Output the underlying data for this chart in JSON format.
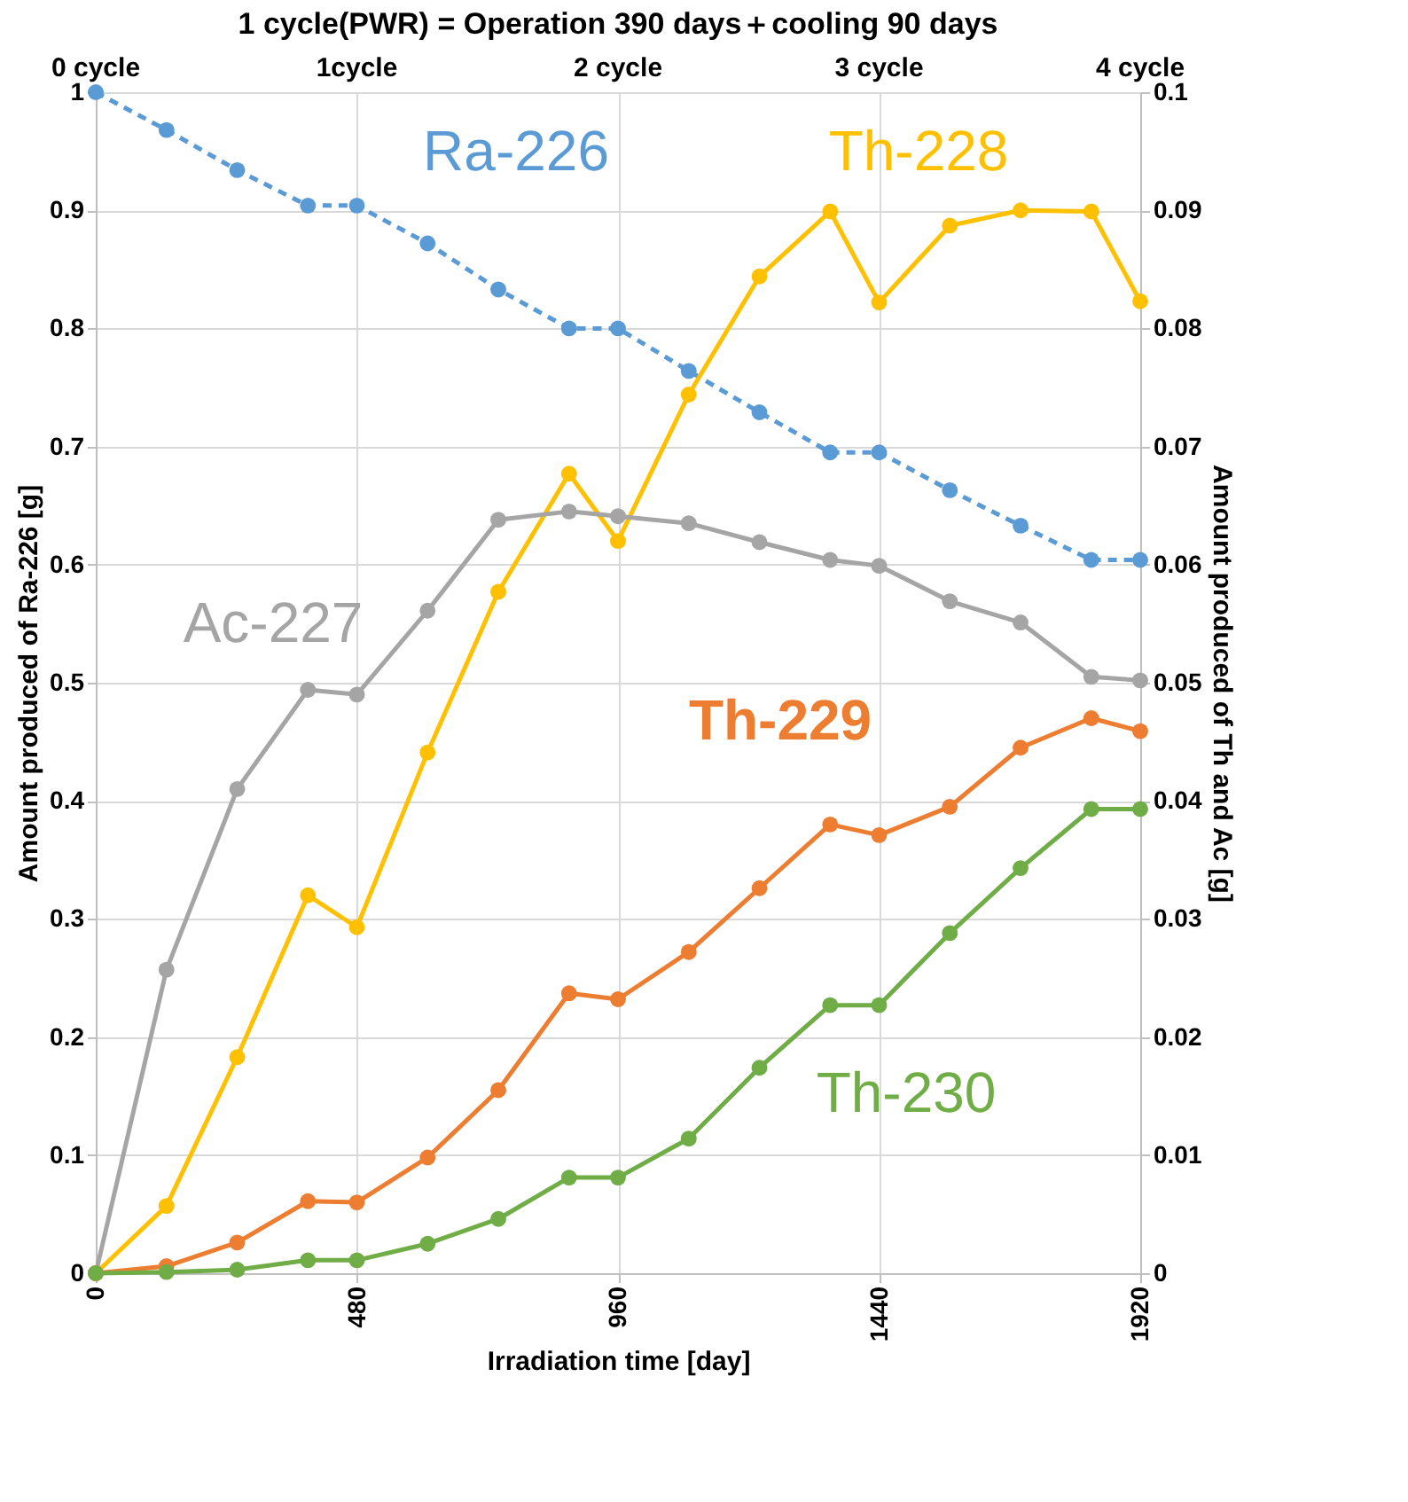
{
  "chart_data": {
    "type": "line",
    "title": "1 cycle(PWR)  = Operation 390 days＋cooling 90 days",
    "xlabel": "Irradiation time [day]",
    "ylabel": "Amount produced  of Ra-226 [g]",
    "y2label": "Amount produced of Th and Ac [g]",
    "x": [
      0,
      130,
      260,
      390,
      480,
      610,
      740,
      870,
      960,
      1090,
      1220,
      1350,
      1440,
      1570,
      1700,
      1830,
      1920
    ],
    "series": [
      {
        "name": "Ra-226",
        "color": "#5b9bd5",
        "line_style": "dashed",
        "values": [
          1.0,
          0.968,
          0.934,
          0.904,
          0.904,
          0.872,
          0.833,
          0.8,
          0.8,
          0.764,
          0.729,
          0.695,
          0.695,
          0.663,
          0.633,
          0.604,
          0.604
        ]
      },
      {
        "name": "Th-228",
        "color": "#ffc000",
        "axis": "y2",
        "values": [
          0,
          0.0057,
          0.0183,
          0.032,
          0.0293,
          0.0441,
          0.0577,
          0.0677,
          0.062,
          0.0744,
          0.0844,
          0.0899,
          0.0822,
          0.0887,
          0.09,
          0.0899,
          0.0823
        ]
      },
      {
        "name": "Ac-227",
        "color": "#a5a5a5",
        "axis": "y2",
        "values": [
          0,
          0.0257,
          0.041,
          0.0494,
          0.049,
          0.0561,
          0.0638,
          0.0645,
          0.0641,
          0.0635,
          0.0619,
          0.0604,
          0.0599,
          0.0569,
          0.0551,
          0.0505,
          0.0502
        ]
      },
      {
        "name": "Th-229",
        "color": "#ed7d31",
        "axis": "y2",
        "values": [
          0,
          0.0006,
          0.0026,
          0.0061,
          0.006,
          0.0098,
          0.0155,
          0.0237,
          0.0232,
          0.0272,
          0.0326,
          0.038,
          0.0371,
          0.0395,
          0.0445,
          0.047,
          0.0459
        ]
      },
      {
        "name": "Th-230",
        "color": "#70ad47",
        "axis": "y2",
        "values": [
          0,
          0.0001,
          0.0003,
          0.0011,
          0.0011,
          0.0025,
          0.0046,
          0.0081,
          0.0081,
          0.0114,
          0.0174,
          0.0227,
          0.0227,
          0.0288,
          0.0343,
          0.0393,
          0.0393
        ]
      }
    ],
    "xlim": [
      0,
      1920
    ],
    "xticks": [
      0,
      480,
      960,
      1440,
      1920
    ],
    "annotations": [
      "0 cycle",
      "1cycle",
      "2 cycle",
      "3 cycle",
      "4 cycle"
    ],
    "ylim": [
      0,
      1
    ],
    "yticks": [
      0,
      0.1,
      0.2,
      0.3,
      0.4,
      0.5,
      0.6,
      0.7,
      0.8,
      0.9,
      1
    ],
    "y2lim": [
      0,
      0.1
    ],
    "y2ticks": [
      0,
      0.01,
      0.02,
      0.03,
      0.04,
      0.05,
      0.06,
      0.07,
      0.08,
      0.09,
      0.1
    ],
    "grid": true,
    "marker": "circle",
    "line_style": "solid"
  }
}
